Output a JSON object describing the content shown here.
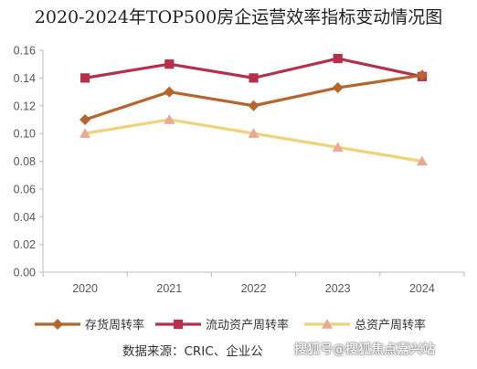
{
  "chart_data": {
    "type": "line",
    "title": "2020-2024年TOP500房企运营效率指标变动情况图",
    "categories": [
      "2020",
      "2021",
      "2022",
      "2023",
      "2024"
    ],
    "ylim": [
      0,
      0.16
    ],
    "yticks": [
      "0.00",
      "0.02",
      "0.04",
      "0.06",
      "0.08",
      "0.10",
      "0.12",
      "0.14",
      "0.16"
    ],
    "grid": false,
    "legend": "bottom",
    "series": [
      {
        "name": "存货周转率",
        "values": [
          0.11,
          0.13,
          0.12,
          0.133,
          0.142
        ],
        "color": "#B5652E",
        "marker": "diamond"
      },
      {
        "name": "流动资产周转率",
        "values": [
          0.14,
          0.15,
          0.14,
          0.154,
          0.141
        ],
        "color": "#B5304B",
        "marker": "square"
      },
      {
        "name": "总资产周转率",
        "values": [
          0.1,
          0.11,
          0.1,
          0.09,
          0.08
        ],
        "color": "#F0D27A",
        "marker": "triangle",
        "markerColor": "#E9A898"
      }
    ]
  },
  "source": "数据来源：CRIC、企业公",
  "watermark": "搜狐号@搜狐焦点嘉兴站"
}
